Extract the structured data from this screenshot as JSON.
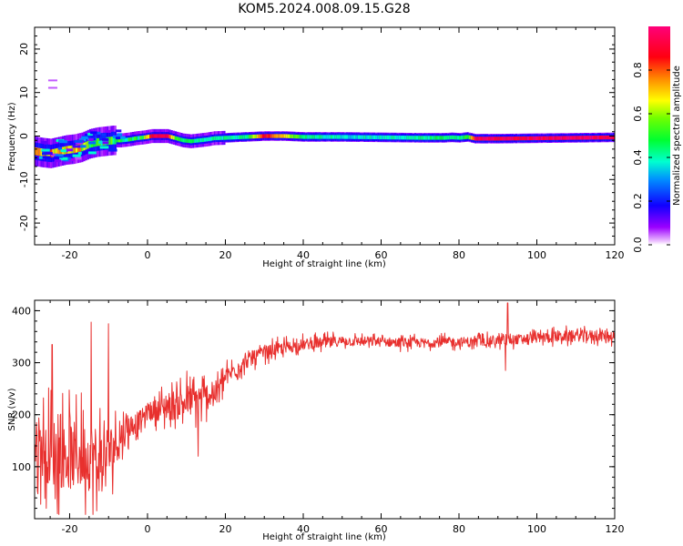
{
  "title": "KOM5.2024.008.09.15.G28",
  "chart_data": [
    {
      "type": "heatmap",
      "title": "KOM5.2024.008.09.15.G28",
      "xlabel": "Height of straight line (km)",
      "ylabel": "Frequency (Hz)",
      "xlim": [
        -29,
        120
      ],
      "ylim": [
        -25,
        25
      ],
      "xticks": [
        -20,
        0,
        20,
        40,
        60,
        80,
        100,
        120
      ],
      "yticks": [
        -20,
        -10,
        0,
        10,
        20
      ],
      "xtick_labels": [
        "-20",
        "0",
        "20",
        "40",
        "60",
        "80",
        "100",
        "120"
      ],
      "ytick_labels": [
        "-20",
        "-10",
        "0",
        "10",
        "20"
      ],
      "colorbar": {
        "label": "Normalized spectral amplitude",
        "range": [
          0,
          1
        ],
        "ticks": [
          0.0,
          0.2,
          0.4,
          0.6,
          0.8
        ],
        "tick_labels": [
          "0.0",
          "0.2",
          "0.4",
          "0.6",
          "0.8"
        ],
        "colormap": "gist_rainbow_r"
      },
      "ridge": {
        "x": [
          -29,
          -27,
          -25,
          -23,
          -21,
          -19,
          -17,
          -15,
          -13,
          -11,
          -9,
          -7,
          -5,
          -3,
          -1,
          1,
          3,
          5,
          7,
          9,
          11,
          13,
          15,
          17,
          20,
          25,
          30,
          35,
          40,
          50,
          60,
          70,
          76,
          78,
          80,
          82,
          84,
          90,
          100,
          110,
          120
        ],
        "freq": [
          -3.5,
          -3.8,
          -4.0,
          -3.6,
          -3.2,
          -3.0,
          -2.6,
          -1.8,
          -1.4,
          -1.2,
          -1.0,
          -1.0,
          -0.8,
          -0.5,
          -0.3,
          0.0,
          0.0,
          0.0,
          -0.5,
          -1.0,
          -1.2,
          -1.0,
          -0.8,
          -0.5,
          -0.4,
          -0.2,
          0.0,
          0.0,
          -0.2,
          -0.2,
          -0.3,
          -0.4,
          -0.4,
          -0.3,
          -0.4,
          -0.2,
          -0.6,
          -0.6,
          -0.5,
          -0.4,
          -0.3
        ],
        "amplitude": [
          0.72,
          0.7,
          0.72,
          0.68,
          0.7,
          0.72,
          0.68,
          0.55,
          0.5,
          0.48,
          0.45,
          0.45,
          0.4,
          0.45,
          0.5,
          0.9,
          0.95,
          0.9,
          0.5,
          0.45,
          0.45,
          0.42,
          0.4,
          0.42,
          0.42,
          0.4,
          0.88,
          0.7,
          0.42,
          0.38,
          0.38,
          0.4,
          0.45,
          0.42,
          0.42,
          0.5,
          0.92,
          0.95,
          0.95,
          0.95,
          0.95
        ]
      },
      "outlier": {
        "x": -24,
        "freq_min": 11,
        "freq_max": 13,
        "amplitude": 0.05
      }
    },
    {
      "type": "line",
      "xlabel": "Height of straight line (km)",
      "ylabel": "SNR (v/v)",
      "xlim": [
        -29,
        120
      ],
      "ylim": [
        0,
        420
      ],
      "xticks": [
        -20,
        0,
        20,
        40,
        60,
        80,
        100,
        120
      ],
      "yticks": [
        100,
        200,
        300,
        400
      ],
      "xtick_labels": [
        "-20",
        "0",
        "20",
        "40",
        "60",
        "80",
        "100",
        "120"
      ],
      "ytick_labels": [
        "100",
        "200",
        "300",
        "400"
      ],
      "color": "#e8302e",
      "trend": {
        "x": [
          -29,
          -25,
          -20,
          -15,
          -11,
          -8,
          -5,
          -2,
          0,
          5,
          10,
          15,
          18,
          20,
          23,
          26,
          30,
          35,
          40,
          50,
          60,
          70,
          80,
          90,
          100,
          110,
          120
        ],
        "snr": [
          140,
          130,
          120,
          120,
          115,
          145,
          175,
          190,
          205,
          215,
          225,
          235,
          245,
          270,
          290,
          305,
          320,
          328,
          335,
          342,
          340,
          338,
          340,
          342,
          348,
          352,
          352
        ],
        "spread": [
          80,
          110,
          110,
          110,
          110,
          60,
          40,
          30,
          25,
          45,
          55,
          45,
          35,
          30,
          25,
          22,
          20,
          20,
          18,
          16,
          15,
          15,
          15,
          15,
          16,
          18,
          18
        ]
      },
      "spikes": [
        {
          "x": -24.5,
          "snr": 335
        },
        {
          "x": -14.5,
          "snr": 378
        },
        {
          "x": -10,
          "snr": 375
        },
        {
          "x": -13,
          "snr": 15
        },
        {
          "x": -26,
          "snr": 20
        },
        {
          "x": 92.5,
          "snr": 415
        },
        {
          "x": 92,
          "snr": 285
        },
        {
          "x": 13,
          "snr": 120
        }
      ]
    }
  ]
}
